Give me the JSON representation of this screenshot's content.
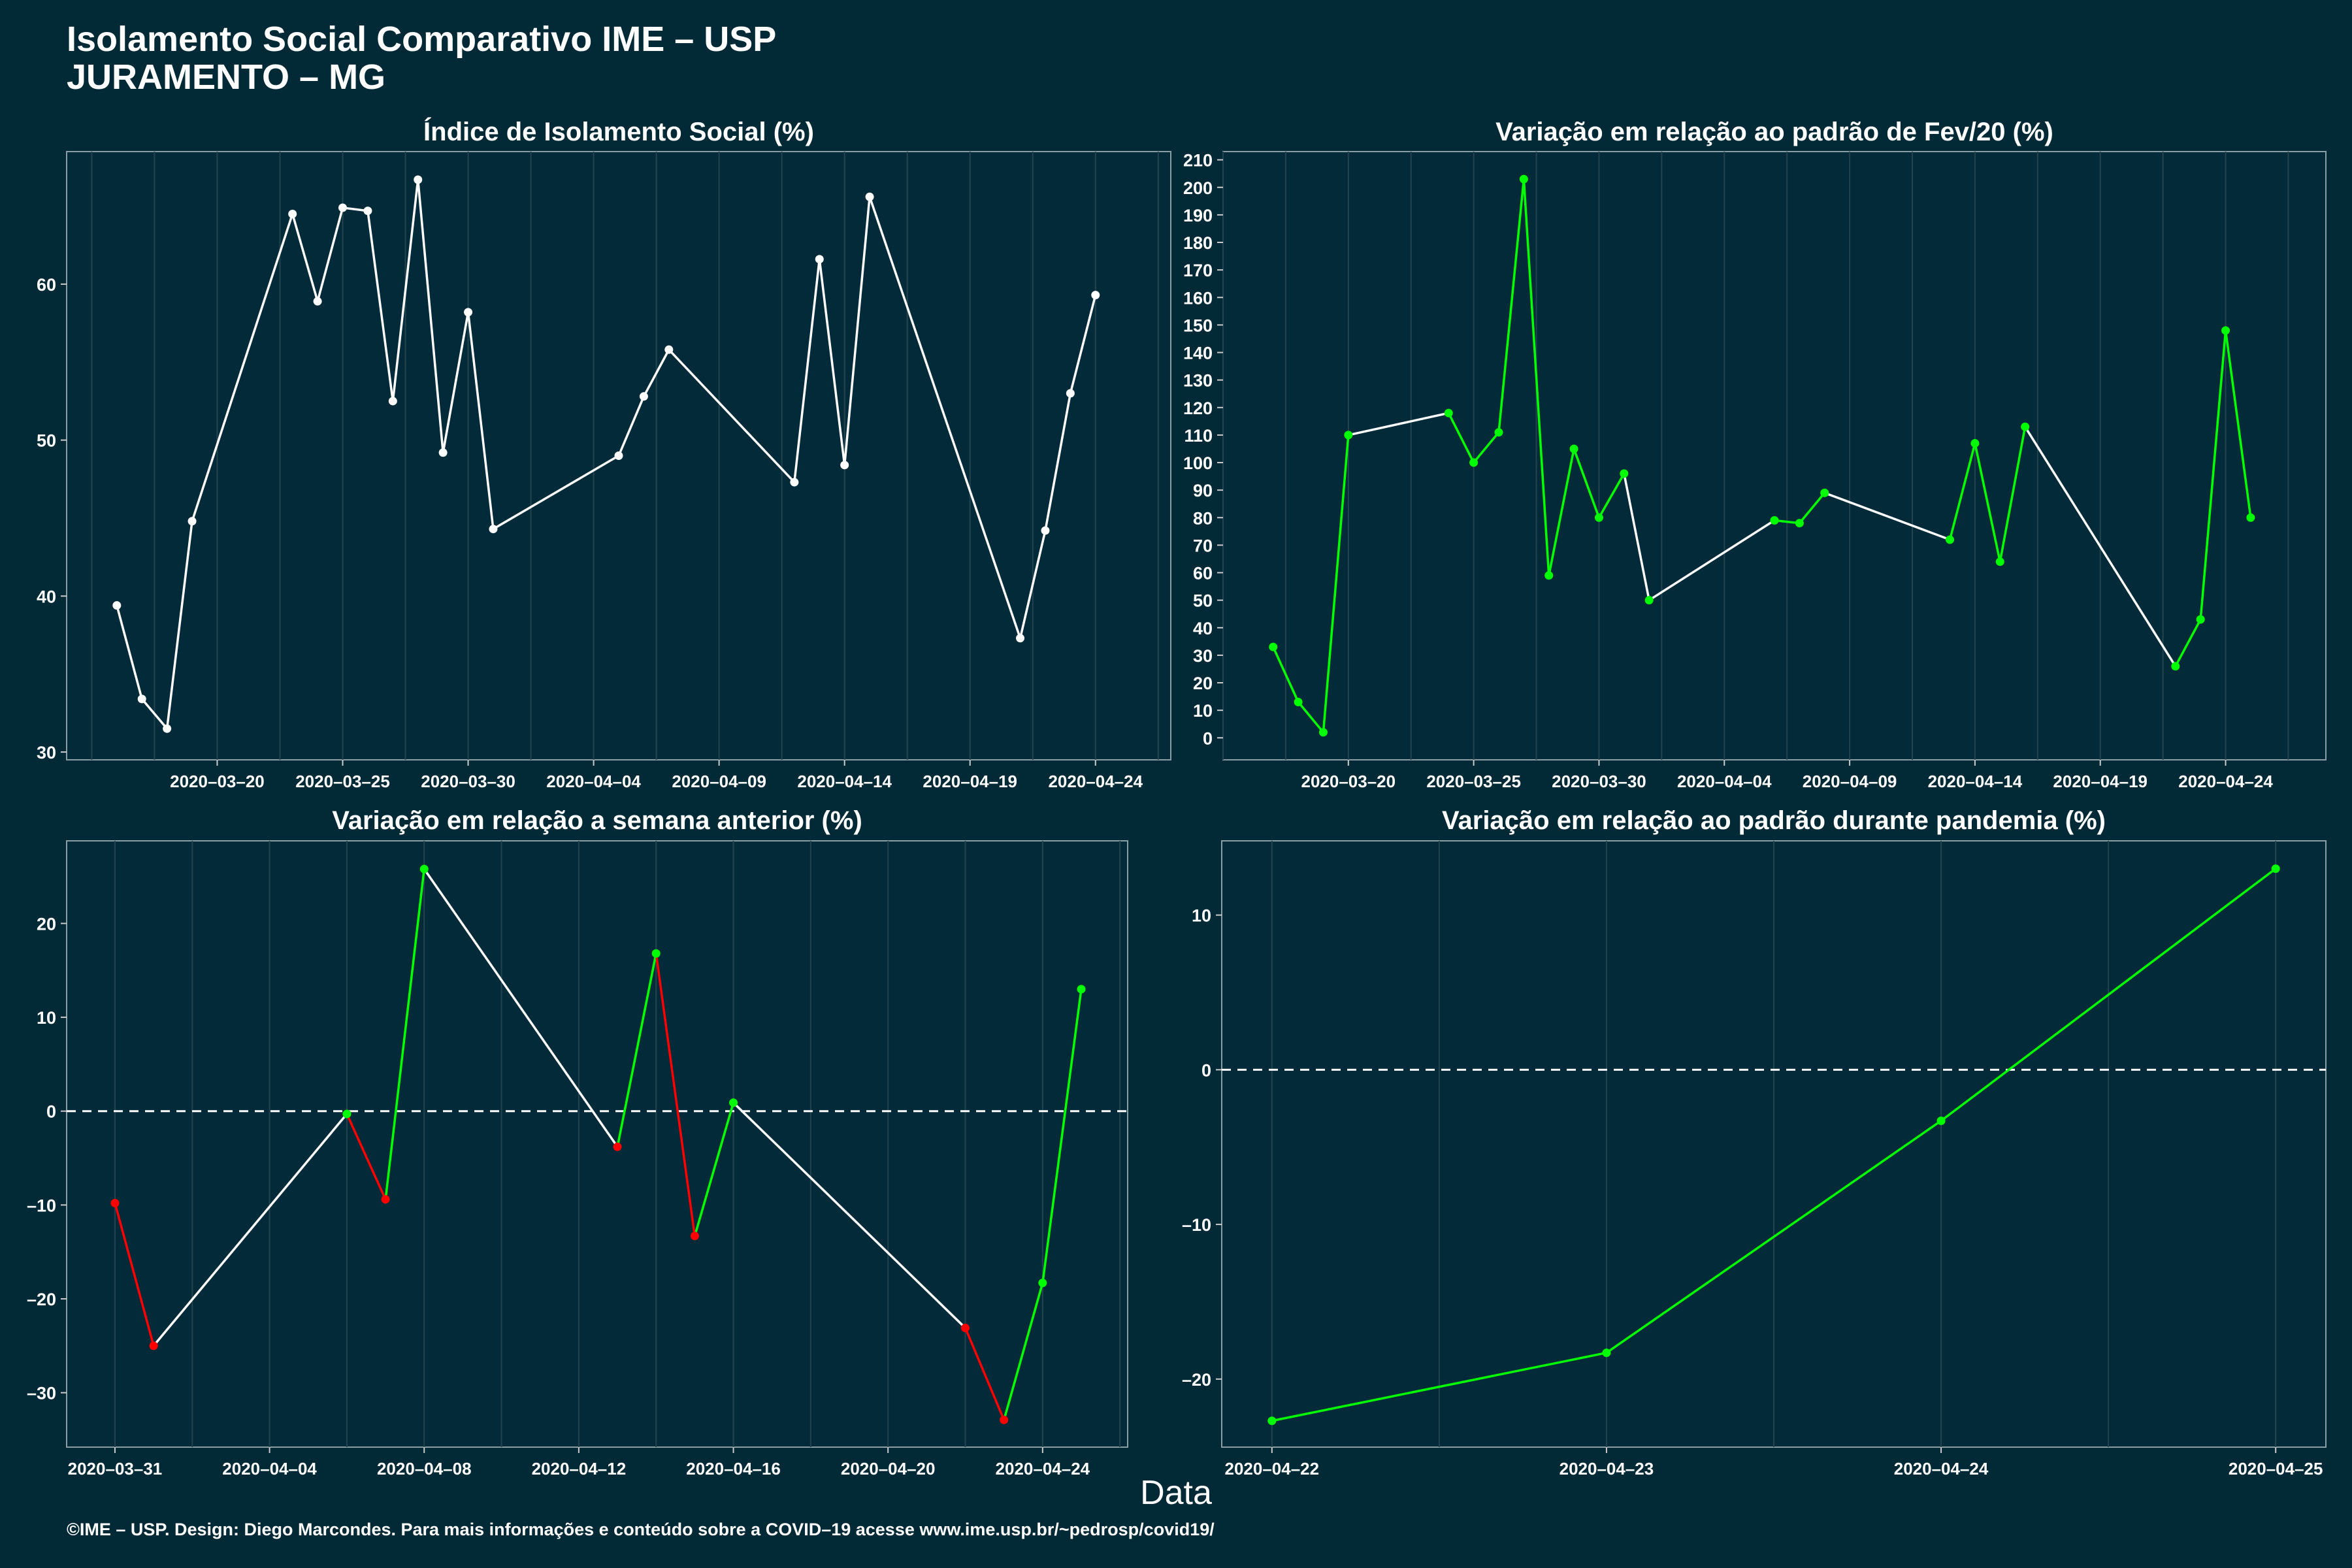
{
  "header": {
    "title_line1": "Isolamento Social Comparativo IME – USP",
    "title_line2": "JURAMENTO – MG"
  },
  "footer": "©IME – USP. Design: Diego Marcondes. Para mais informações e conteúdo sobre a COVID–19 acesse www.ime.usp.br/~pedrosp/covid19/",
  "xlabel": "Data",
  "colors": {
    "background": "#022a36",
    "panel": "#032a38",
    "up": "#00ff00",
    "down": "#ff0000",
    "neutral": "#ffffff",
    "grid": "#23444f"
  },
  "chart_data": [
    {
      "type": "line",
      "title": "Índice de Isolamento Social (%)",
      "x": [
        "2020-03-16",
        "2020-03-17",
        "2020-03-18",
        "2020-03-19",
        "2020-03-23",
        "2020-03-24",
        "2020-03-25",
        "2020-03-26",
        "2020-03-27",
        "2020-03-28",
        "2020-03-29",
        "2020-03-30",
        "2020-03-31",
        "2020-04-05",
        "2020-04-06",
        "2020-04-07",
        "2020-04-12",
        "2020-04-13",
        "2020-04-14",
        "2020-04-15",
        "2020-04-21",
        "2020-04-22",
        "2020-04-23",
        "2020-04-24"
      ],
      "y": [
        39.4,
        33.4,
        31.5,
        44.8,
        64.5,
        58.9,
        64.9,
        64.7,
        52.5,
        66.7,
        49.2,
        58.2,
        44.3,
        49.0,
        52.8,
        55.8,
        47.3,
        61.6,
        48.4,
        65.6,
        37.3,
        44.2,
        53.0,
        59.3
      ],
      "xlim": [
        "2020-03-14",
        "2020-04-27"
      ],
      "ylim": [
        29.5,
        68.5
      ],
      "xticks": [
        "2020-03-20",
        "2020-03-25",
        "2020-03-30",
        "2020-04-04",
        "2020-04-09",
        "2020-04-14",
        "2020-04-19",
        "2020-04-24"
      ],
      "yticks": [
        30,
        40,
        50,
        60
      ],
      "color_mode": "neutral",
      "zero_line": false
    },
    {
      "type": "line",
      "title": "Variação em relação ao padrão de Fev/20 (%)",
      "x": [
        "2020-03-17",
        "2020-03-18",
        "2020-03-19",
        "2020-03-20",
        "2020-03-24",
        "2020-03-25",
        "2020-03-26",
        "2020-03-27",
        "2020-03-28",
        "2020-03-29",
        "2020-03-30",
        "2020-03-31",
        "2020-04-01",
        "2020-04-06",
        "2020-04-07",
        "2020-04-08",
        "2020-04-13",
        "2020-04-14",
        "2020-04-15",
        "2020-04-16",
        "2020-04-22",
        "2020-04-23",
        "2020-04-24",
        "2020-04-25"
      ],
      "y": [
        33,
        13,
        2,
        110,
        118,
        100,
        111,
        203,
        59,
        105,
        80,
        96,
        50,
        79,
        78,
        89,
        72,
        107,
        64,
        113,
        26,
        43,
        148,
        80
      ],
      "segment_colors": [
        "g",
        "g",
        "g",
        "w",
        "g",
        "g",
        "g",
        "g",
        "g",
        "g",
        "g",
        "w",
        "w",
        "g",
        "g",
        "w",
        "g",
        "g",
        "g",
        "w",
        "g",
        "g",
        "g"
      ],
      "xlim": [
        "2020-03-15",
        "2020-04-28"
      ],
      "ylim": [
        -8,
        213
      ],
      "xticks": [
        "2020-03-20",
        "2020-03-25",
        "2020-03-30",
        "2020-04-04",
        "2020-04-09",
        "2020-04-14",
        "2020-04-19",
        "2020-04-24"
      ],
      "yticks": [
        0,
        10,
        20,
        30,
        40,
        50,
        60,
        70,
        80,
        90,
        100,
        110,
        120,
        130,
        140,
        150,
        160,
        170,
        180,
        190,
        200,
        210
      ],
      "color_mode": "segments",
      "point_color": "g",
      "zero_line": false
    },
    {
      "type": "line",
      "title": "Variação em relação a semana anterior (%)",
      "x": [
        "2020-03-31",
        "2020-04-01",
        "2020-04-06",
        "2020-04-07",
        "2020-04-08",
        "2020-04-13",
        "2020-04-14",
        "2020-04-15",
        "2020-04-16",
        "2020-04-22",
        "2020-04-23",
        "2020-04-24",
        "2020-04-25"
      ],
      "y": [
        -9.8,
        -25,
        -0.3,
        -9.4,
        25.8,
        -3.8,
        16.8,
        -13.3,
        0.9,
        -23.1,
        -32.9,
        -18.3,
        13
      ],
      "xlim": [
        "2020-03-29.75",
        "2020-04-26.2"
      ],
      "ylim": [
        -35.8,
        28.8
      ],
      "xticks": [
        "2020-03-31",
        "2020-04-04",
        "2020-04-08",
        "2020-04-12",
        "2020-04-16",
        "2020-04-20",
        "2020-04-24"
      ],
      "yticks": [
        -30,
        -20,
        -10,
        0,
        10,
        20
      ],
      "color_mode": "sign",
      "zero_line": true
    },
    {
      "type": "line",
      "title": "Variação em relação ao padrão durante pandemia (%)",
      "x": [
        "2020-04-22",
        "2020-04-23",
        "2020-04-24",
        "2020-04-25"
      ],
      "y": [
        -22.7,
        -18.3,
        -3.3,
        13
      ],
      "xlim": [
        "2020-04-21.85",
        "2020-04-25.15"
      ],
      "ylim": [
        -24.4,
        14.8
      ],
      "xticks": [
        "2020-04-22",
        "2020-04-23",
        "2020-04-24",
        "2020-04-25"
      ],
      "yticks": [
        -20,
        -10,
        0,
        10
      ],
      "color_mode": "sign",
      "zero_line": true
    }
  ]
}
